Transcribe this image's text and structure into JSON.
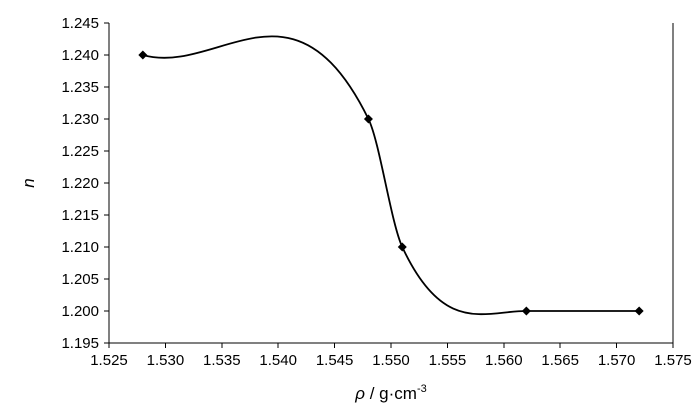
{
  "chart_data": {
    "type": "line",
    "title": "",
    "xlabel": "ρ / g·cm⁻³",
    "xlabel_parts": {
      "symbol": "ρ",
      "unit": " / g·cm",
      "exponent": "-3"
    },
    "ylabel": "n",
    "xlim": [
      1.525,
      1.575
    ],
    "ylim": [
      1.195,
      1.245
    ],
    "xticks": [
      "1.525",
      "1.530",
      "1.535",
      "1.540",
      "1.545",
      "1.550",
      "1.555",
      "1.560",
      "1.565",
      "1.570",
      "1.575"
    ],
    "yticks": [
      "1.195",
      "1.200",
      "1.205",
      "1.210",
      "1.215",
      "1.220",
      "1.225",
      "1.230",
      "1.235",
      "1.240",
      "1.245"
    ],
    "grid": false,
    "legend": "none",
    "line_style": "smooth",
    "marker": "diamond",
    "series": [
      {
        "x": [
          1.528,
          1.548,
          1.551,
          1.562,
          1.572
        ],
        "values": [
          1.24,
          1.23,
          1.21,
          1.2,
          1.2
        ]
      }
    ]
  }
}
